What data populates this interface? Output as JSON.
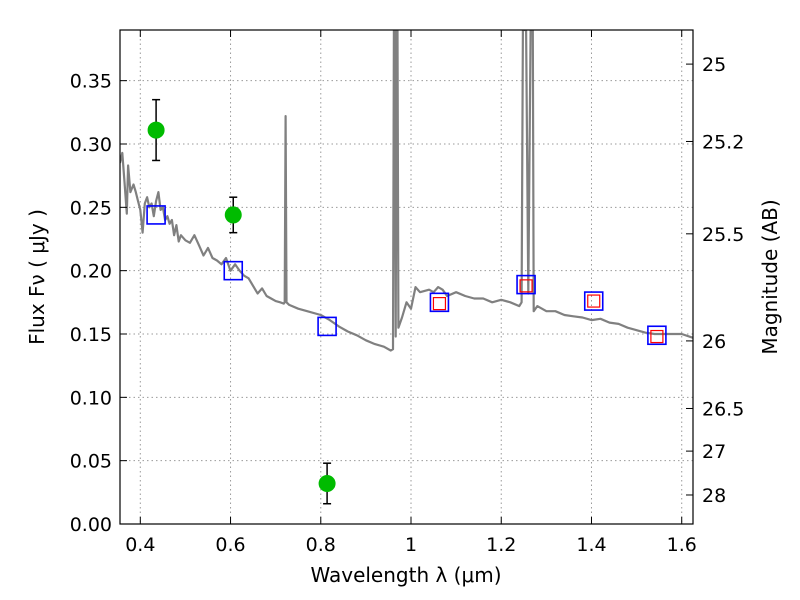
{
  "chart_data": {
    "type": "scatter",
    "title": "",
    "xlabel": "Wavelength  λ (μm)",
    "ylabel_left": "Flux  Fν  ( μJy )",
    "ylabel_right": "Magnitude (AB)",
    "xlim": [
      0.355,
      1.625
    ],
    "ylim": [
      0.0,
      0.39
    ],
    "grid": true,
    "x_ticks": [
      {
        "value": 0.4,
        "label": "0.4"
      },
      {
        "value": 0.6,
        "label": "0.6"
      },
      {
        "value": 0.8,
        "label": "0.8"
      },
      {
        "value": 1.0,
        "label": "1"
      },
      {
        "value": 1.2,
        "label": "1.2"
      },
      {
        "value": 1.4,
        "label": "1.4"
      },
      {
        "value": 1.6,
        "label": "1.6"
      }
    ],
    "y_ticks": [
      {
        "value": 0.0,
        "label": "0.00"
      },
      {
        "value": 0.05,
        "label": "0.05"
      },
      {
        "value": 0.1,
        "label": "0.10"
      },
      {
        "value": 0.15,
        "label": "0.15"
      },
      {
        "value": 0.2,
        "label": "0.20"
      },
      {
        "value": 0.25,
        "label": "0.25"
      },
      {
        "value": 0.3,
        "label": "0.30"
      },
      {
        "value": 0.35,
        "label": "0.35"
      }
    ],
    "right_ticks": [
      {
        "mag": 25,
        "label": "25"
      },
      {
        "mag": 25.2,
        "label": "25.2"
      },
      {
        "mag": 25.5,
        "label": "25.5"
      },
      {
        "mag": 26,
        "label": "26"
      },
      {
        "mag": 26.5,
        "label": "26.5"
      },
      {
        "mag": 27,
        "label": "27"
      },
      {
        "mag": 28,
        "label": "28"
      }
    ],
    "series": [
      {
        "name": "model-spectrum",
        "kind": "line",
        "color": "#808080",
        "points": [
          [
            0.355,
            0.285
          ],
          [
            0.36,
            0.293
          ],
          [
            0.365,
            0.27
          ],
          [
            0.37,
            0.245
          ],
          [
            0.373,
            0.283
          ],
          [
            0.378,
            0.262
          ],
          [
            0.385,
            0.268
          ],
          [
            0.39,
            0.262
          ],
          [
            0.395,
            0.255
          ],
          [
            0.4,
            0.248
          ],
          [
            0.405,
            0.23
          ],
          [
            0.41,
            0.253
          ],
          [
            0.415,
            0.258
          ],
          [
            0.42,
            0.25
          ],
          [
            0.425,
            0.253
          ],
          [
            0.43,
            0.243
          ],
          [
            0.435,
            0.255
          ],
          [
            0.44,
            0.262
          ],
          [
            0.445,
            0.248
          ],
          [
            0.45,
            0.25
          ],
          [
            0.455,
            0.24
          ],
          [
            0.46,
            0.243
          ],
          [
            0.465,
            0.237
          ],
          [
            0.47,
            0.24
          ],
          [
            0.475,
            0.228
          ],
          [
            0.48,
            0.236
          ],
          [
            0.485,
            0.223
          ],
          [
            0.49,
            0.228
          ],
          [
            0.5,
            0.224
          ],
          [
            0.51,
            0.222
          ],
          [
            0.52,
            0.228
          ],
          [
            0.53,
            0.22
          ],
          [
            0.54,
            0.212
          ],
          [
            0.55,
            0.218
          ],
          [
            0.56,
            0.21
          ],
          [
            0.57,
            0.208
          ],
          [
            0.58,
            0.205
          ],
          [
            0.59,
            0.21
          ],
          [
            0.6,
            0.2
          ],
          [
            0.61,
            0.205
          ],
          [
            0.62,
            0.2
          ],
          [
            0.63,
            0.196
          ],
          [
            0.64,
            0.194
          ],
          [
            0.65,
            0.188
          ],
          [
            0.66,
            0.182
          ],
          [
            0.67,
            0.186
          ],
          [
            0.68,
            0.18
          ],
          [
            0.69,
            0.178
          ],
          [
            0.7,
            0.176
          ],
          [
            0.71,
            0.175
          ],
          [
            0.718,
            0.174
          ],
          [
            0.72,
            0.175
          ],
          [
            0.722,
            0.322
          ],
          [
            0.724,
            0.175
          ],
          [
            0.73,
            0.173
          ],
          [
            0.75,
            0.17
          ],
          [
            0.77,
            0.168
          ],
          [
            0.8,
            0.165
          ],
          [
            0.82,
            0.161
          ],
          [
            0.84,
            0.156
          ],
          [
            0.86,
            0.152
          ],
          [
            0.88,
            0.149
          ],
          [
            0.9,
            0.145
          ],
          [
            0.92,
            0.142
          ],
          [
            0.94,
            0.14
          ],
          [
            0.955,
            0.137
          ],
          [
            0.96,
            0.138
          ],
          [
            0.962,
            0.39
          ],
          [
            0.964,
            0.39
          ],
          [
            0.966,
            0.148
          ],
          [
            0.968,
            0.39
          ],
          [
            0.97,
            0.39
          ],
          [
            0.972,
            0.155
          ],
          [
            0.98,
            0.163
          ],
          [
            0.99,
            0.175
          ],
          [
            1.0,
            0.17
          ],
          [
            1.01,
            0.187
          ],
          [
            1.02,
            0.183
          ],
          [
            1.04,
            0.185
          ],
          [
            1.05,
            0.183
          ],
          [
            1.06,
            0.187
          ],
          [
            1.07,
            0.185
          ],
          [
            1.08,
            0.18
          ],
          [
            1.1,
            0.183
          ],
          [
            1.12,
            0.18
          ],
          [
            1.14,
            0.178
          ],
          [
            1.16,
            0.178
          ],
          [
            1.18,
            0.175
          ],
          [
            1.2,
            0.177
          ],
          [
            1.22,
            0.175
          ],
          [
            1.24,
            0.172
          ],
          [
            1.245,
            0.175
          ],
          [
            1.248,
            0.39
          ],
          [
            1.255,
            0.39
          ],
          [
            1.26,
            0.182
          ],
          [
            1.265,
            0.39
          ],
          [
            1.27,
            0.39
          ],
          [
            1.272,
            0.168
          ],
          [
            1.28,
            0.172
          ],
          [
            1.3,
            0.168
          ],
          [
            1.32,
            0.168
          ],
          [
            1.34,
            0.165
          ],
          [
            1.36,
            0.164
          ],
          [
            1.38,
            0.163
          ],
          [
            1.4,
            0.161
          ],
          [
            1.42,
            0.162
          ],
          [
            1.44,
            0.159
          ],
          [
            1.46,
            0.158
          ],
          [
            1.48,
            0.155
          ],
          [
            1.5,
            0.153
          ],
          [
            1.52,
            0.151
          ],
          [
            1.54,
            0.15
          ],
          [
            1.56,
            0.15
          ],
          [
            1.58,
            0.15
          ],
          [
            1.6,
            0.15
          ],
          [
            1.625,
            0.147
          ]
        ]
      },
      {
        "name": "green-observed-flux",
        "kind": "errorbar",
        "color": "#00bb00",
        "points": [
          {
            "x": 0.435,
            "y": 0.311,
            "err": 0.024
          },
          {
            "x": 0.606,
            "y": 0.244,
            "err": 0.014
          },
          {
            "x": 0.814,
            "y": 0.032,
            "err": 0.016
          }
        ]
      },
      {
        "name": "blue-model-photometry",
        "kind": "open-square",
        "color": "#0000ff",
        "points": [
          {
            "x": 0.435,
            "y": 0.244
          },
          {
            "x": 0.606,
            "y": 0.2
          },
          {
            "x": 0.814,
            "y": 0.156
          },
          {
            "x": 1.063,
            "y": 0.175
          },
          {
            "x": 1.255,
            "y": 0.189
          },
          {
            "x": 1.405,
            "y": 0.176
          },
          {
            "x": 1.545,
            "y": 0.149
          }
        ]
      },
      {
        "name": "red-observed-nir",
        "kind": "open-square-small",
        "color": "#ff0000",
        "points": [
          {
            "x": 1.063,
            "y": 0.174
          },
          {
            "x": 1.255,
            "y": 0.188
          },
          {
            "x": 1.405,
            "y": 0.176
          },
          {
            "x": 1.545,
            "y": 0.148
          }
        ]
      }
    ]
  }
}
